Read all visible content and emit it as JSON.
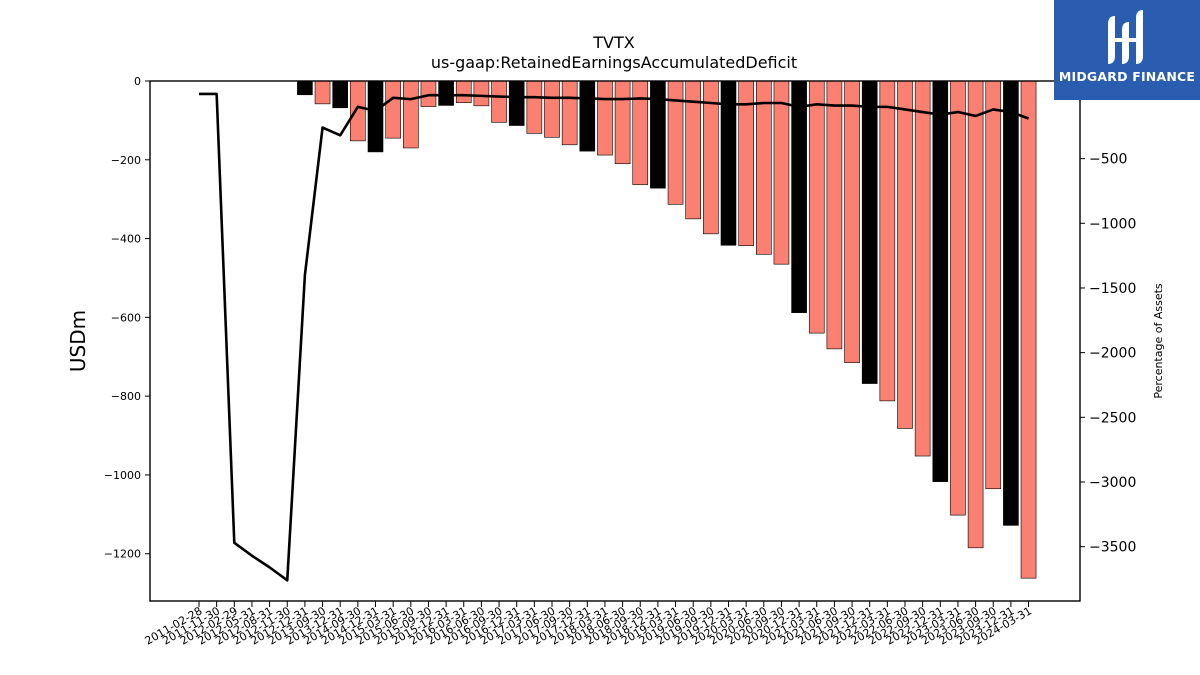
{
  "brand": {
    "name": "MIDGARD FINANCE",
    "logo_icon": "midgard-m-logo-icon",
    "bg_color": "#2a5db0"
  },
  "colors": {
    "bar_default": "#fa8072",
    "bar_highlight": "#000000",
    "line": "#000000"
  },
  "chart_data": {
    "type": "bar",
    "title": "TVTX",
    "subtitle": "us-gaap:RetainedEarningsAccumulatedDeficit",
    "ylabel": "USDm",
    "y2label": "Percentage of Assets",
    "ylim": [
      -1320,
      0
    ],
    "yticks": [
      0,
      -200,
      -400,
      -600,
      -800,
      -1000,
      -1200
    ],
    "y2lim": [
      -3920,
      100
    ],
    "y2ticks": [
      0,
      -500,
      -1000,
      -1500,
      -2000,
      -2500,
      -3000,
      -3500
    ],
    "categories": [
      "2011-02-28",
      "2011-11-30",
      "2012-02-29",
      "2012-05-31",
      "2012-08-31",
      "2012-11-30",
      "2012-12-31",
      "2013-09-30",
      "2013-12-31",
      "2014-09-30",
      "2014-12-31",
      "2015-03-31",
      "2015-06-30",
      "2015-09-30",
      "2015-12-31",
      "2016-03-31",
      "2016-06-30",
      "2016-09-30",
      "2016-12-31",
      "2017-03-31",
      "2017-06-30",
      "2017-09-30",
      "2017-12-31",
      "2018-03-31",
      "2018-06-30",
      "2018-09-30",
      "2018-12-31",
      "2019-03-31",
      "2019-06-30",
      "2019-09-30",
      "2019-12-31",
      "2020-03-31",
      "2020-06-30",
      "2020-09-30",
      "2020-12-31",
      "2021-03-31",
      "2021-06-30",
      "2021-09-30",
      "2021-12-31",
      "2022-03-31",
      "2022-06-30",
      "2022-09-30",
      "2022-12-31",
      "2023-03-31",
      "2023-06-30",
      "2023-09-30",
      "2023-12-31",
      "2024-03-31"
    ],
    "series": [
      {
        "type": "bar",
        "values": [
          null,
          null,
          null,
          null,
          null,
          null,
          -35,
          -58,
          -68,
          -152,
          -180,
          -145,
          -170,
          -65,
          -62,
          -55,
          -63,
          -105,
          -113,
          -133,
          -143,
          -162,
          -178,
          -188,
          -210,
          -263,
          -272,
          -313,
          -350,
          -388,
          -417,
          -418,
          -440,
          -465,
          -588,
          -640,
          -680,
          -715,
          -768,
          -812,
          -882,
          -952,
          -1017,
          -1102,
          -1185,
          -1035,
          -1128,
          -1262
        ],
        "highlight": [
          false,
          false,
          false,
          false,
          false,
          false,
          true,
          false,
          true,
          false,
          true,
          false,
          false,
          false,
          true,
          false,
          false,
          false,
          true,
          false,
          false,
          false,
          true,
          false,
          false,
          false,
          true,
          false,
          false,
          false,
          true,
          false,
          false,
          false,
          true,
          false,
          false,
          false,
          true,
          false,
          false,
          false,
          true,
          false,
          false,
          false,
          true,
          false
        ]
      },
      {
        "type": "line",
        "axis": "right",
        "values": [
          0,
          0,
          -3470,
          -3570,
          -3660,
          -3760,
          -1400,
          -260,
          -320,
          -100,
          -130,
          -30,
          -40,
          -10,
          -10,
          -10,
          -15,
          -20,
          -25,
          -25,
          -30,
          -30,
          -35,
          -40,
          -40,
          -35,
          -40,
          -50,
          -60,
          -70,
          -80,
          -80,
          -70,
          -70,
          -100,
          -80,
          -90,
          -90,
          -100,
          -100,
          -120,
          -140,
          -160,
          -140,
          -170,
          -120,
          -140,
          -190
        ]
      }
    ]
  }
}
